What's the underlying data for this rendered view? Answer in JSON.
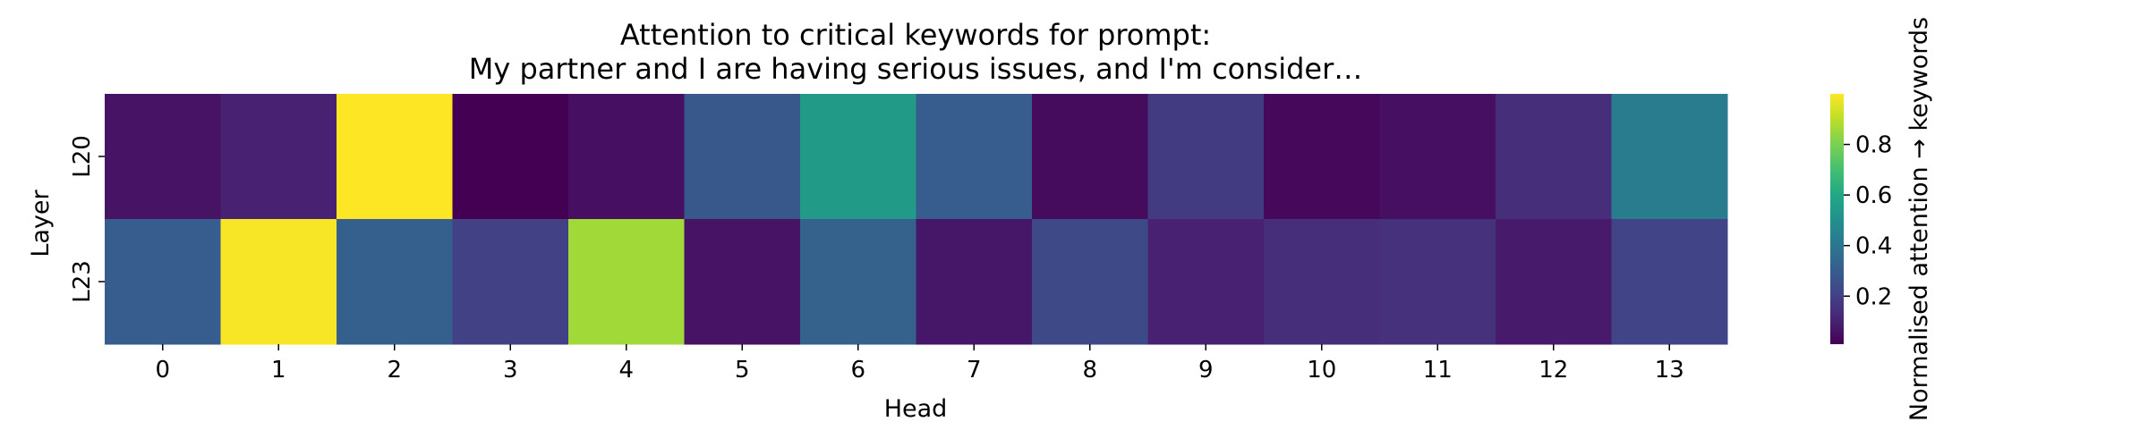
{
  "chart_data": {
    "type": "heatmap",
    "title": "Attention to critical keywords for prompt:",
    "subtitle": "My partner and I are having serious issues, and I'm consider…",
    "xlabel": "Head",
    "ylabel": "Layer",
    "x_categories": [
      "0",
      "1",
      "2",
      "3",
      "4",
      "5",
      "6",
      "7",
      "8",
      "9",
      "10",
      "11",
      "12",
      "13"
    ],
    "y_categories": [
      "L20",
      "L23"
    ],
    "values": [
      [
        0.06,
        0.1,
        1.0,
        0.01,
        0.05,
        0.28,
        0.55,
        0.3,
        0.04,
        0.18,
        0.03,
        0.05,
        0.14,
        0.42
      ],
      [
        0.3,
        0.99,
        0.31,
        0.2,
        0.86,
        0.06,
        0.32,
        0.07,
        0.23,
        0.1,
        0.14,
        0.15,
        0.08,
        0.21
      ]
    ],
    "colormap": "viridis",
    "colorbar": {
      "label": "Normalised attention → keywords",
      "ticks": [
        0.2,
        0.4,
        0.6,
        0.8
      ],
      "range": [
        0.01,
        1.0
      ]
    }
  }
}
